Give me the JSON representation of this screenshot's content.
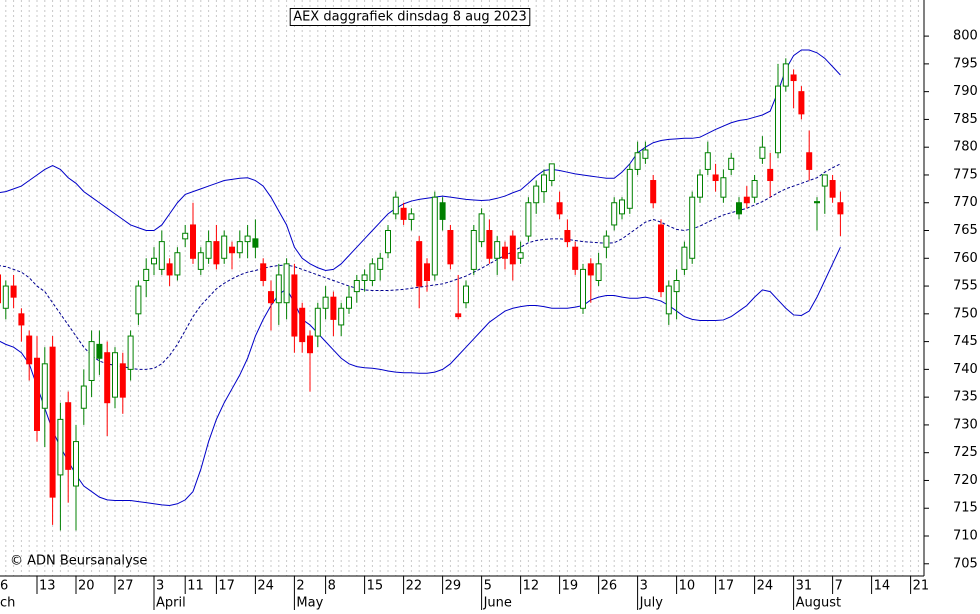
{
  "chart_data": {
    "type": "candlestick",
    "title": "AEX daggrafiek dinsdag 8 aug 2023",
    "credit": "© ADN Beursanalyse",
    "categories": [
      "6",
      null,
      null,
      null,
      null,
      "13",
      null,
      null,
      null,
      null,
      "20",
      null,
      null,
      null,
      null,
      "27",
      null,
      null,
      null,
      null,
      "3",
      null,
      null,
      null,
      "11",
      null,
      null,
      null,
      "17",
      null,
      null,
      null,
      null,
      "24",
      null,
      null,
      null,
      null,
      "2",
      null,
      null,
      null,
      "8",
      null,
      null,
      null,
      null,
      "15",
      null,
      null,
      null,
      null,
      "22",
      null,
      null,
      null,
      null,
      "29",
      null,
      null,
      null,
      null,
      "5",
      null,
      null,
      null,
      null,
      "12",
      null,
      null,
      null,
      null,
      "19",
      null,
      null,
      null,
      null,
      "26",
      null,
      null,
      null,
      null,
      "3",
      null,
      null,
      null,
      null,
      "10",
      null,
      null,
      null,
      null,
      "17",
      null,
      null,
      null,
      null,
      "24",
      null,
      null,
      null,
      null,
      "31",
      null,
      null,
      null,
      null,
      "7",
      null,
      null,
      null,
      null,
      "14",
      null,
      null,
      null,
      null,
      "21",
      null,
      null,
      null,
      null
    ],
    "month_labels": [
      "ch",
      null,
      null,
      null,
      null,
      null,
      null,
      null,
      null,
      null,
      null,
      null,
      null,
      null,
      null,
      null,
      null,
      null,
      null,
      null,
      "April",
      null,
      null,
      null,
      null,
      null,
      null,
      null,
      null,
      null,
      null,
      null,
      null,
      null,
      null,
      null,
      null,
      null,
      "May",
      null,
      null,
      null,
      null,
      null,
      null,
      null,
      null,
      null,
      null,
      null,
      null,
      null,
      null,
      null,
      null,
      null,
      null,
      null,
      null,
      null,
      null,
      null,
      "June",
      null,
      null,
      null,
      null,
      null,
      null,
      null,
      null,
      null,
      null,
      null,
      null,
      null,
      null,
      null,
      null,
      null,
      null,
      null,
      "July",
      null,
      null,
      null,
      null,
      null,
      null,
      null,
      null,
      null,
      null,
      null,
      null,
      null,
      null,
      null,
      null,
      null,
      null,
      null,
      "August",
      null,
      null,
      null,
      null,
      null,
      null,
      null,
      null,
      null,
      null,
      null,
      null,
      null,
      null,
      null,
      null,
      null,
      null,
      null
    ],
    "open": [
      757,
      751,
      755,
      750,
      746,
      742,
      733,
      744,
      721,
      734,
      719,
      733,
      738,
      742,
      743,
      735,
      741,
      740,
      750,
      756,
      759,
      758,
      759,
      757,
      763.5,
      766,
      758,
      760,
      763,
      760,
      762,
      761,
      763,
      762,
      759,
      754,
      752,
      752,
      757,
      751,
      746,
      746,
      751,
      753,
      748,
      751,
      754,
      756,
      756,
      758,
      761,
      768,
      769,
      767,
      763,
      759,
      757,
      767,
      765,
      750,
      752,
      758,
      763,
      765,
      760,
      762,
      764,
      760,
      764,
      770,
      772,
      774,
      770,
      765,
      762,
      751,
      759,
      756,
      762,
      766,
      768,
      769,
      776,
      778,
      774,
      766,
      750,
      754,
      758,
      760,
      771,
      776,
      775,
      771,
      776,
      768,
      771,
      771,
      778,
      776,
      779,
      791,
      793,
      790,
      779,
      770,
      773,
      774,
      770,
      null,
      null,
      null,
      null,
      null,
      null,
      null,
      null,
      null,
      null,
      null,
      null,
      null
    ],
    "high": [
      759,
      756,
      757,
      751,
      747,
      746,
      744,
      746,
      734,
      736,
      730,
      740,
      747,
      747,
      745,
      744,
      743,
      747,
      756,
      760,
      762,
      765,
      760,
      762,
      766,
      770,
      762,
      765,
      766,
      765,
      763,
      765,
      766,
      767,
      760,
      756,
      759,
      760,
      759,
      752,
      747,
      752,
      755,
      754,
      752,
      755,
      757,
      758,
      760,
      761,
      766,
      772,
      770,
      769,
      764,
      760,
      772,
      771,
      766,
      757,
      756,
      766,
      769,
      767,
      764,
      763,
      765,
      763,
      771,
      774,
      776,
      777,
      772,
      767,
      763,
      759,
      760,
      761,
      765,
      771,
      771,
      777,
      781,
      781,
      775,
      767,
      756,
      758,
      763,
      772,
      776,
      781,
      777,
      776,
      779,
      771,
      773,
      775,
      782,
      779,
      795,
      796,
      794,
      791,
      783,
      771,
      775,
      775,
      772,
      null,
      null,
      null,
      null,
      null,
      null,
      null,
      null,
      null,
      null,
      null,
      null,
      null
    ],
    "low": [
      750,
      749,
      751,
      745,
      738,
      727,
      726,
      712,
      711,
      716,
      711,
      730,
      735,
      739,
      728,
      733,
      732,
      738,
      748,
      753,
      757,
      757,
      755,
      756,
      762,
      759,
      757,
      759,
      758,
      759,
      758,
      760,
      760,
      760,
      755,
      747,
      748,
      749,
      743,
      743,
      736,
      744,
      749,
      746,
      746,
      750,
      752,
      754,
      755,
      756,
      760,
      767,
      766,
      765,
      751,
      754,
      756,
      765,
      758,
      749,
      751,
      757,
      762,
      759,
      757,
      758,
      756,
      759,
      763,
      768,
      770,
      773,
      767,
      762,
      757,
      750,
      752,
      755,
      760,
      765,
      767,
      768,
      775,
      777,
      769,
      753,
      748,
      749,
      757,
      759,
      770,
      775,
      772,
      770,
      775,
      767,
      769,
      770,
      777,
      771,
      778,
      790,
      787,
      785,
      774,
      765,
      768,
      770,
      764,
      null,
      null,
      null,
      null,
      null,
      null,
      null,
      null,
      null,
      null,
      null,
      null,
      null
    ],
    "close": [
      752,
      755,
      753,
      748,
      741,
      729,
      741,
      717,
      731,
      722,
      727,
      737,
      745,
      744.5,
      734,
      743,
      735,
      746,
      755,
      758,
      760,
      763,
      757,
      761,
      764.5,
      760,
      761,
      763,
      759,
      764,
      761,
      763,
      764,
      763.5,
      756,
      752,
      757,
      759,
      746,
      745,
      743,
      751,
      753,
      749,
      751,
      753,
      756,
      757,
      759,
      760,
      765,
      771,
      767,
      768,
      755,
      756,
      771,
      770,
      759,
      749.5,
      755,
      765,
      768,
      760,
      763,
      760,
      759,
      761,
      770,
      773,
      775,
      777,
      768,
      763,
      758,
      758,
      757,
      759,
      764,
      770,
      770.5,
      776,
      779,
      779.5,
      770,
      754,
      755,
      756,
      762,
      771,
      775,
      779,
      774,
      774.5,
      778,
      770,
      770,
      774,
      780,
      774,
      791,
      795,
      792,
      786,
      776,
      770.2,
      775,
      771,
      768,
      null,
      null,
      null,
      null,
      null,
      null,
      null,
      null,
      null,
      null,
      null,
      null,
      null
    ],
    "up_color": "#008000",
    "down_color": "#ff0000",
    "series": [
      {
        "color": "#0000c8",
        "line_style": "solid",
        "values": [
          771.8,
          772,
          772.5,
          773,
          774,
          775,
          776,
          776.7,
          776,
          774.5,
          773.5,
          772,
          771,
          770,
          769,
          768,
          767,
          766,
          765.5,
          765,
          765,
          766,
          768,
          770,
          771.5,
          772,
          772.5,
          773,
          773.5,
          774,
          774.2,
          774.4,
          774.5,
          774,
          773,
          771,
          768.5,
          766,
          762,
          760,
          759,
          758.3,
          757.8,
          758,
          759,
          760.5,
          762,
          763.5,
          765,
          766.5,
          768,
          769,
          769.8,
          770.3,
          770.6,
          770.8,
          771,
          771.2,
          771,
          770.8,
          770.6,
          770.5,
          770.4,
          770.5,
          770.8,
          771.2,
          771.8,
          772.3,
          773.5,
          774.8,
          775.8,
          776,
          775.8,
          775.5,
          775.2,
          775,
          774.8,
          774.6,
          774.4,
          774.4,
          775.5,
          777,
          779,
          780,
          780.8,
          781.2,
          781.4,
          781.5,
          781.6,
          781.6,
          781.8,
          782.5,
          783.2,
          783.8,
          784.4,
          784.8,
          785,
          785.4,
          785.8,
          786.5,
          790,
          794,
          796.5,
          797.5,
          797.5,
          797,
          796,
          794.5,
          793,
          null,
          null,
          null,
          null,
          null,
          null,
          null,
          null,
          null,
          null,
          null,
          null,
          null
        ]
      },
      {
        "color": "#000090",
        "line_style": "dashed",
        "values": [
          758.7,
          758.5,
          758,
          757.5,
          756.5,
          755,
          754,
          752,
          750,
          748,
          746,
          744,
          742.5,
          741.5,
          741,
          740.7,
          740.5,
          740.2,
          740,
          740,
          740.2,
          741,
          742.5,
          744.5,
          747,
          749.5,
          751.5,
          753,
          754.5,
          755.5,
          756.3,
          757,
          757.5,
          757.8,
          758.2,
          758.5,
          758.7,
          758.8,
          758.5,
          758,
          757.5,
          757,
          756.5,
          756,
          755.5,
          755,
          754.6,
          754.3,
          754.2,
          754.2,
          754.2,
          754.3,
          754.4,
          754.6,
          754.8,
          755,
          755.2,
          755.4,
          755.8,
          756.3,
          756.8,
          757.5,
          758.2,
          759,
          759.8,
          760.5,
          761.2,
          762,
          762.8,
          763.2,
          763.4,
          763.5,
          763.5,
          763.4,
          763.2,
          763,
          762.9,
          762.8,
          762.7,
          762.8,
          763.5,
          764.5,
          765.5,
          766.5,
          767,
          766.5,
          765.8,
          765.2,
          765,
          765.3,
          765.8,
          766.5,
          767.2,
          767.8,
          768.2,
          768.6,
          769,
          769.6,
          770.2,
          771,
          771.8,
          772.5,
          773,
          773.5,
          774,
          774.5,
          775.5,
          776.3,
          777,
          null,
          null,
          null,
          null,
          null,
          null,
          null,
          null,
          null,
          null,
          null,
          null,
          null
        ]
      },
      {
        "color": "#0000c8",
        "line_style": "solid",
        "values": [
          745.2,
          744.5,
          744,
          743,
          741,
          737,
          733,
          729,
          726,
          723.5,
          721,
          719,
          718,
          717,
          716.5,
          716.4,
          716.4,
          716.4,
          716.2,
          716,
          715.8,
          715.6,
          715.5,
          715.8,
          716.5,
          718,
          722,
          727,
          731,
          734,
          736.5,
          739,
          742,
          746,
          749,
          751.5,
          753.5,
          754.5,
          752,
          749,
          748,
          746.5,
          745,
          743.5,
          742,
          741,
          740.5,
          740.3,
          740.2,
          740,
          739.7,
          739.5,
          739.4,
          739.4,
          739.3,
          739.3,
          739.5,
          740,
          741,
          742.5,
          744,
          745.5,
          747,
          748.5,
          749.5,
          750.5,
          751,
          751.3,
          751.5,
          751.5,
          751.3,
          751,
          751,
          751,
          751.2,
          751.5,
          752.5,
          753,
          753.3,
          753.3,
          753,
          752.8,
          752.8,
          753,
          752.7,
          752.3,
          751.5,
          750.5,
          749.5,
          749,
          748.8,
          748.8,
          748.8,
          748.9,
          749.5,
          750.5,
          751.5,
          753,
          754.3,
          754,
          752.5,
          751,
          749.8,
          749.7,
          750.5,
          753,
          756,
          759,
          762,
          null,
          null,
          null,
          null,
          null,
          null,
          null,
          null,
          null,
          null,
          null,
          null,
          null
        ]
      }
    ],
    "ylim": [
      702.8,
      806.5
    ],
    "yticks": [
      705,
      710,
      715,
      720,
      725,
      730,
      735,
      740,
      745,
      750,
      755,
      760,
      765,
      770,
      775,
      780,
      785,
      790,
      795,
      800
    ],
    "grid": true
  }
}
